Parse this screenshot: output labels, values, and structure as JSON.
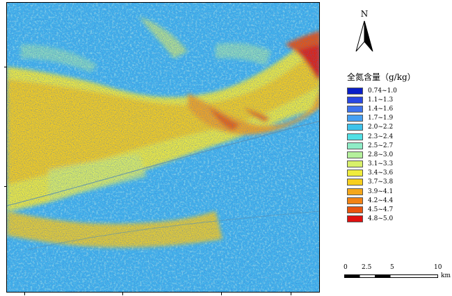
{
  "map": {
    "north_label": "N",
    "legend": {
      "title": "全氮含量（g/kg）",
      "classes": [
        {
          "label": "0.74~1.0",
          "color": "#0a1ec8"
        },
        {
          "label": "1.1~1.3",
          "color": "#2a47e3"
        },
        {
          "label": "1.4~1.6",
          "color": "#3f73ee"
        },
        {
          "label": "1.7~1.9",
          "color": "#46a0f2"
        },
        {
          "label": "2.0~2.2",
          "color": "#3fc3ea"
        },
        {
          "label": "2.3~2.4",
          "color": "#52e0e5"
        },
        {
          "label": "2.5~2.7",
          "color": "#8fecc6"
        },
        {
          "label": "2.8~3.0",
          "color": "#b5f09c"
        },
        {
          "label": "3.1~3.3",
          "color": "#d8f06a"
        },
        {
          "label": "3.4~3.6",
          "color": "#f0ec3c"
        },
        {
          "label": "3.7~3.8",
          "color": "#f7cf1e"
        },
        {
          "label": "3.9~4.1",
          "color": "#f5a71a"
        },
        {
          "label": "4.2~4.4",
          "color": "#f28314"
        },
        {
          "label": "4.5~4.7",
          "color": "#e9540e"
        },
        {
          "label": "4.8~5.0",
          "color": "#e01010"
        }
      ]
    },
    "scale_bar": {
      "labels": [
        "0",
        "2.5",
        "5",
        "10"
      ],
      "unit": "km"
    }
  }
}
